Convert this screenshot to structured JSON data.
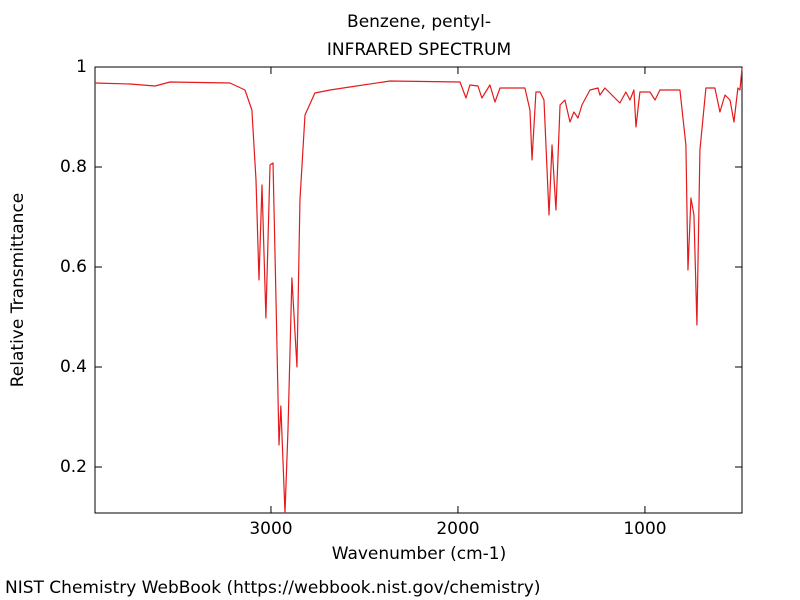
{
  "chart_data": {
    "type": "line",
    "title": "Benzene, pentyl-",
    "subtitle": "INFRARED SPECTRUM",
    "x_label": "Wavenumber (cm-1)",
    "y_label": "Relative Transmittance",
    "source": "NIST Chemistry WebBook (https://webbook.nist.gov/chemistry)",
    "xlim": [
      3941,
      481
    ],
    "ylim": [
      0.108,
      1
    ],
    "xticks": [
      3000,
      2000,
      1000
    ],
    "yticks": [
      0.2,
      0.4,
      0.6,
      0.8,
      1
    ],
    "color": "#e41a1c",
    "x": [
      3941,
      3754,
      3620,
      3540,
      3219,
      3139,
      3102,
      3080,
      3064,
      3048,
      3027,
      3005,
      2989,
      2973,
      2957,
      2947,
      2925,
      2909,
      2888,
      2861,
      2845,
      2818,
      2765,
      2684,
      2578,
      2364,
      1989,
      1957,
      1936,
      1893,
      1872,
      1829,
      1802,
      1775,
      1642,
      1615,
      1604,
      1583,
      1561,
      1540,
      1513,
      1497,
      1476,
      1454,
      1428,
      1401,
      1380,
      1358,
      1337,
      1294,
      1251,
      1241,
      1214,
      1134,
      1102,
      1080,
      1059,
      1048,
      1027,
      973,
      946,
      920,
      813,
      781,
      770,
      754,
      738,
      722,
      706,
      674,
      626,
      599,
      572,
      545,
      524,
      503,
      492,
      481
    ],
    "values": [
      0.968,
      0.966,
      0.962,
      0.97,
      0.968,
      0.954,
      0.914,
      0.774,
      0.574,
      0.764,
      0.498,
      0.804,
      0.808,
      0.534,
      0.244,
      0.322,
      0.108,
      0.274,
      0.578,
      0.4,
      0.734,
      0.904,
      0.948,
      0.954,
      0.96,
      0.972,
      0.97,
      0.938,
      0.964,
      0.962,
      0.938,
      0.964,
      0.93,
      0.958,
      0.958,
      0.914,
      0.814,
      0.95,
      0.95,
      0.934,
      0.704,
      0.844,
      0.714,
      0.924,
      0.934,
      0.89,
      0.91,
      0.898,
      0.924,
      0.954,
      0.958,
      0.944,
      0.958,
      0.928,
      0.95,
      0.934,
      0.954,
      0.88,
      0.95,
      0.95,
      0.934,
      0.954,
      0.954,
      0.844,
      0.594,
      0.738,
      0.704,
      0.484,
      0.834,
      0.958,
      0.958,
      0.91,
      0.944,
      0.934,
      0.89,
      0.958,
      0.954,
      0.998
    ]
  }
}
